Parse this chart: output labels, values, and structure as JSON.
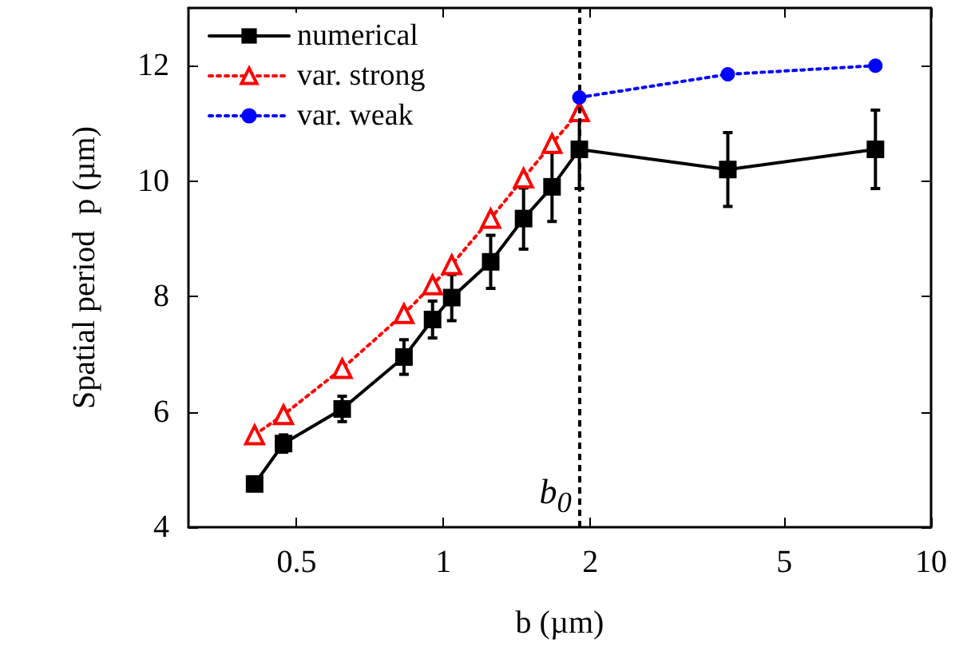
{
  "chart_data": {
    "type": "line",
    "xlabel": "b (µm)",
    "ylabel": "Spatial period  p (µm)",
    "log": "x",
    "xlim": [
      0.3,
      10
    ],
    "xticks": [
      0.5,
      1,
      2,
      5,
      10
    ],
    "ylim": [
      4,
      13
    ],
    "yticks": [
      4,
      6,
      8,
      10,
      12
    ],
    "grid": false,
    "legend": "top left",
    "series": [
      {
        "name": "numerical",
        "color": "#000000",
        "marker": "square",
        "line_style": "solid",
        "x": [
          0.41,
          0.47,
          0.62,
          0.83,
          0.95,
          1.04,
          1.25,
          1.46,
          1.67,
          1.9,
          3.83,
          7.69
        ],
        "values": [
          4.75,
          5.45,
          6.05,
          6.95,
          7.6,
          7.98,
          8.6,
          9.35,
          9.9,
          10.55,
          10.2,
          10.55
        ],
        "errors": [
          null,
          0.15,
          0.22,
          0.3,
          0.32,
          0.4,
          0.46,
          0.53,
          0.6,
          0.68,
          0.64,
          0.68
        ]
      },
      {
        "name": "var. strong",
        "color": "#ff0000",
        "marker": "triangle",
        "line_style": "dotted",
        "x": [
          0.41,
          0.47,
          0.62,
          0.83,
          0.95,
          1.04,
          1.25,
          1.46,
          1.67,
          1.9
        ],
        "values": [
          5.6,
          5.95,
          6.75,
          7.7,
          8.2,
          8.55,
          9.35,
          10.05,
          10.65,
          11.2
        ]
      },
      {
        "name": "var. weak",
        "color": "#0000ff",
        "marker": "circle",
        "line_style": "dotted",
        "x": [
          1.9,
          3.83,
          7.69
        ],
        "values": [
          11.45,
          11.85,
          12.0
        ]
      }
    ],
    "ref_lines": [
      {
        "axis": "x",
        "value": 1.9,
        "label": "b$_{0}$",
        "color": "#000000",
        "line_style": "dashed"
      }
    ]
  }
}
